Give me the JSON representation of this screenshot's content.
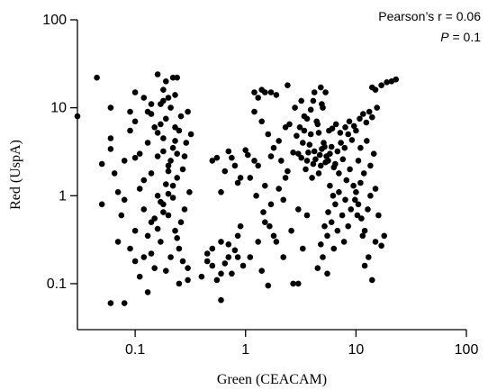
{
  "chart_data": {
    "type": "scatter",
    "title": "",
    "xlabel": "Green (CEACAM)",
    "ylabel": "Red (UspA)",
    "xscale": "log",
    "yscale": "log",
    "xlim": [
      0.03,
      100
    ],
    "ylim": [
      0.03,
      100
    ],
    "x_ticks": [
      0.1,
      1,
      10,
      100
    ],
    "x_tick_labels": [
      "0.1",
      "1",
      "10",
      "100"
    ],
    "y_ticks": [
      0.1,
      1,
      10,
      100
    ],
    "y_tick_labels": [
      "0.1",
      "1",
      "10",
      "100"
    ],
    "grid": false,
    "legend": "none",
    "marker_color": "#000000",
    "annotations": {
      "pearson_label": "Pearson’s r = 0.06",
      "p_symbol": "P",
      "p_value": " = 0.1"
    },
    "series": [
      {
        "points": [
          [
            0.03,
            8
          ],
          [
            0.045,
            22
          ],
          [
            0.05,
            2.3
          ],
          [
            0.05,
            0.8
          ],
          [
            0.06,
            10
          ],
          [
            0.06,
            0.06
          ],
          [
            0.08,
            0.06
          ],
          [
            0.16,
            24
          ],
          [
            0.19,
            20
          ],
          [
            0.22,
            22
          ],
          [
            0.24,
            22
          ],
          [
            0.18,
            16
          ],
          [
            0.18,
            12
          ],
          [
            0.1,
            15
          ],
          [
            0.23,
            14
          ],
          [
            0.6,
            0.065
          ],
          [
            0.13,
            0.08
          ],
          [
            0.25,
            0.1
          ],
          [
            0.3,
            0.11
          ],
          [
            1.2,
            15
          ],
          [
            1.4,
            16
          ],
          [
            1.5,
            15
          ],
          [
            1.7,
            15
          ],
          [
            1.3,
            13
          ],
          [
            1.9,
            14
          ],
          [
            2.4,
            18
          ],
          [
            4.2,
            15
          ],
          [
            4.8,
            17
          ],
          [
            5.3,
            15
          ],
          [
            4.1,
            12
          ],
          [
            4.9,
            11
          ],
          [
            17,
            18
          ],
          [
            19,
            19.5
          ],
          [
            21,
            20
          ],
          [
            23,
            21
          ],
          [
            15,
            16
          ],
          [
            14,
            17
          ],
          [
            1.4,
            0.14
          ],
          [
            1.6,
            0.095
          ],
          [
            2.7,
            0.1
          ],
          [
            3,
            0.1
          ],
          [
            5.5,
            0.13
          ],
          [
            13,
            0.2
          ],
          [
            12,
            0.16
          ],
          [
            14,
            0.11
          ],
          [
            15,
            0.3
          ],
          [
            17,
            0.27
          ],
          [
            18,
            0.35
          ],
          [
            0.5,
            0.25
          ],
          [
            0.6,
            0.13
          ],
          [
            0.7,
            0.2
          ],
          [
            0.85,
            0.35
          ],
          [
            0.9,
            0.45
          ],
          [
            1.05,
            2.9
          ],
          [
            1.2,
            2.5
          ],
          [
            0.8,
            2.2
          ],
          [
            0.7,
            3.2
          ],
          [
            0.55,
            2.7
          ],
          [
            0.9,
            1.6
          ],
          [
            0.06,
            3.4
          ],
          [
            0.065,
            1.8
          ],
          [
            0.07,
            1.1
          ],
          [
            0.07,
            0.3
          ],
          [
            0.075,
            0.6
          ],
          [
            0.06,
            4.5
          ],
          [
            0.08,
            2.5
          ],
          [
            0.08,
            0.9
          ],
          [
            0.09,
            0.25
          ],
          [
            0.1,
            0.18
          ],
          [
            0.1,
            0.4
          ],
          [
            0.09,
            5.5
          ],
          [
            0.1,
            7
          ],
          [
            0.11,
            3
          ],
          [
            0.11,
            1.2
          ],
          [
            0.12,
            0.7
          ],
          [
            0.12,
            0.2
          ],
          [
            0.13,
            9
          ],
          [
            0.13,
            4
          ],
          [
            0.14,
            1.8
          ],
          [
            0.14,
            0.5
          ],
          [
            0.15,
            0.15
          ],
          [
            0.15,
            6
          ],
          [
            0.16,
            2.8
          ],
          [
            0.16,
            1
          ],
          [
            0.17,
            0.3
          ],
          [
            0.17,
            11
          ],
          [
            0.18,
            4.5
          ],
          [
            0.18,
            0.8
          ],
          [
            0.19,
            0.14
          ],
          [
            0.19,
            7.5
          ],
          [
            0.2,
            2.2
          ],
          [
            0.2,
            0.6
          ],
          [
            0.21,
            0.2
          ],
          [
            0.21,
            10
          ],
          [
            0.22,
            3.5
          ],
          [
            0.22,
            1.3
          ],
          [
            0.23,
            0.4
          ],
          [
            0.23,
            6
          ],
          [
            0.24,
            1.6
          ],
          [
            0.25,
            0.25
          ],
          [
            0.26,
            8
          ],
          [
            0.27,
            2
          ],
          [
            0.28,
            0.7
          ],
          [
            0.29,
            4
          ],
          [
            0.3,
            0.15
          ],
          [
            0.31,
            1.1
          ],
          [
            0.32,
            5
          ],
          [
            0.12,
            13
          ],
          [
            0.14,
            8.5
          ],
          [
            0.16,
            5.2
          ],
          [
            0.18,
            3.2
          ],
          [
            0.2,
            1.9
          ],
          [
            0.22,
            0.95
          ],
          [
            0.13,
            0.35
          ],
          [
            0.15,
            0.55
          ],
          [
            0.17,
            0.85
          ],
          [
            0.19,
            1.35
          ],
          [
            0.21,
            2.5
          ],
          [
            0.23,
            4.2
          ],
          [
            0.11,
            0.12
          ],
          [
            0.14,
            0.22
          ],
          [
            0.16,
            0.42
          ],
          [
            0.18,
            0.65
          ],
          [
            0.2,
            1.05
          ],
          [
            0.24,
            3
          ],
          [
            0.09,
            9
          ],
          [
            0.1,
            2.7
          ],
          [
            0.12,
            1.5
          ],
          [
            0.14,
            11
          ],
          [
            0.17,
            6.5
          ],
          [
            0.2,
            13
          ],
          [
            0.26,
            0.5
          ],
          [
            0.28,
            2.8
          ],
          [
            0.3,
            9
          ],
          [
            0.27,
            0.18
          ],
          [
            0.25,
            5.5
          ],
          [
            0.24,
            0.33
          ],
          [
            0.4,
            0.12
          ],
          [
            0.45,
            0.18
          ],
          [
            0.5,
            0.16
          ],
          [
            0.55,
            0.11
          ],
          [
            0.65,
            0.17
          ],
          [
            0.75,
            0.13
          ],
          [
            0.8,
            0.24
          ],
          [
            0.95,
            0.16
          ],
          [
            0.45,
            0.22
          ],
          [
            0.6,
            0.3
          ],
          [
            0.7,
            0.28
          ],
          [
            0.85,
            0.2
          ],
          [
            0.5,
            2.5
          ],
          [
            0.65,
            1.9
          ],
          [
            0.75,
            2.7
          ],
          [
            1.0,
            3.3
          ],
          [
            0.85,
            1.4
          ],
          [
            0.6,
            1.1
          ],
          [
            1.1,
            0.2
          ],
          [
            1.3,
            0.3
          ],
          [
            1.5,
            0.5
          ],
          [
            1.7,
            0.8
          ],
          [
            2,
            1.2
          ],
          [
            2.3,
            1.6
          ],
          [
            2.6,
            0.4
          ],
          [
            3,
            0.7
          ],
          [
            3.3,
            0.25
          ],
          [
            3.6,
            0.6
          ],
          [
            2.2,
            0.9
          ],
          [
            1.8,
            0.35
          ],
          [
            1.2,
            9
          ],
          [
            1.4,
            7
          ],
          [
            1.6,
            5
          ],
          [
            1.8,
            3.5
          ],
          [
            2.1,
            2.5
          ],
          [
            2.4,
            1.9
          ],
          [
            1.3,
            2.2
          ],
          [
            1.5,
            1.3
          ],
          [
            1.7,
            2.8
          ],
          [
            2,
            4.2
          ],
          [
            2.3,
            6
          ],
          [
            2.7,
            3.1
          ],
          [
            1.1,
            1.6
          ],
          [
            1.25,
            1.0
          ],
          [
            1.45,
            0.65
          ],
          [
            1.65,
            0.45
          ],
          [
            1.9,
            0.3
          ],
          [
            2.2,
            0.2
          ],
          [
            3,
            3
          ],
          [
            3.3,
            4
          ],
          [
            3.6,
            2.5
          ],
          [
            3.9,
            5
          ],
          [
            4.2,
            3.2
          ],
          [
            4.5,
            6.5
          ],
          [
            4.8,
            2.2
          ],
          [
            5.1,
            4
          ],
          [
            5.4,
            2.8
          ],
          [
            5.7,
            5.5
          ],
          [
            6,
            3.6
          ],
          [
            3.5,
            2
          ],
          [
            4,
            1.6
          ],
          [
            4.6,
            1.8
          ],
          [
            3.8,
            3.8
          ],
          [
            4.3,
            2.6
          ],
          [
            4.9,
            3.4
          ],
          [
            5.3,
            2.4
          ],
          [
            5.8,
            3
          ],
          [
            6.3,
            2.1
          ],
          [
            3.2,
            2.7
          ],
          [
            3.7,
            3.1
          ],
          [
            4.1,
            2.3
          ],
          [
            4.7,
            2.9
          ],
          [
            5.2,
            3.6
          ],
          [
            5.6,
            2.5
          ],
          [
            3.4,
            8
          ],
          [
            3.9,
            9.5
          ],
          [
            4.4,
            7
          ],
          [
            5,
            10
          ],
          [
            3.1,
            6
          ],
          [
            4.6,
            5.2
          ],
          [
            6.5,
            2.3
          ],
          [
            7,
            1.8
          ],
          [
            7.6,
            2.6
          ],
          [
            8.2,
            1.5
          ],
          [
            8.8,
            2
          ],
          [
            9.5,
            1.3
          ],
          [
            6.8,
            3.2
          ],
          [
            7.3,
            4
          ],
          [
            7.9,
            3.5
          ],
          [
            8.5,
            5
          ],
          [
            9.2,
            4.3
          ],
          [
            10,
            5.5
          ],
          [
            6.1,
            5.8
          ],
          [
            6.6,
            6.5
          ],
          [
            7.2,
            5.2
          ],
          [
            8,
            6
          ],
          [
            8.7,
            7
          ],
          [
            9.6,
            6.2
          ],
          [
            10.5,
            2.5
          ],
          [
            11,
            3.5
          ],
          [
            11.8,
            1.8
          ],
          [
            12.5,
            4.2
          ],
          [
            13.5,
            2.2
          ],
          [
            14.5,
            3
          ],
          [
            10.8,
            7.5
          ],
          [
            11.6,
            8.5
          ],
          [
            12.4,
            6.8
          ],
          [
            13.2,
            9
          ],
          [
            14,
            7.8
          ],
          [
            15.5,
            10
          ],
          [
            10,
            1.1
          ],
          [
            10.5,
            0.8
          ],
          [
            11.2,
            0.55
          ],
          [
            12,
            0.4
          ],
          [
            12.8,
            0.7
          ],
          [
            13.5,
            1
          ],
          [
            9.8,
            0.9
          ],
          [
            10.3,
            0.6
          ],
          [
            11,
            1.4
          ],
          [
            11.5,
            0.35
          ],
          [
            16,
            0.6
          ],
          [
            15,
            1.2
          ],
          [
            5,
            0.2
          ],
          [
            5.5,
            0.35
          ],
          [
            6,
            0.5
          ],
          [
            6.5,
            0.8
          ],
          [
            7,
            1.1
          ],
          [
            7.5,
            0.6
          ],
          [
            8,
            0.9
          ],
          [
            8.5,
            0.45
          ],
          [
            9,
            0.7
          ],
          [
            5.8,
            1.3
          ],
          [
            6.3,
            0.25
          ],
          [
            7.8,
            0.3
          ],
          [
            4.5,
            0.15
          ],
          [
            4.8,
            0.28
          ],
          [
            5.2,
            0.45
          ],
          [
            5.6,
            0.65
          ],
          [
            6.2,
            1.0
          ],
          [
            6.8,
            0.4
          ],
          [
            2.8,
            10
          ],
          [
            3.2,
            12
          ],
          [
            3.6,
            7.5
          ],
          [
            2.5,
            6.5
          ],
          [
            2.9,
            4.8
          ],
          [
            3.4,
            5.5
          ]
        ]
      }
    ]
  }
}
